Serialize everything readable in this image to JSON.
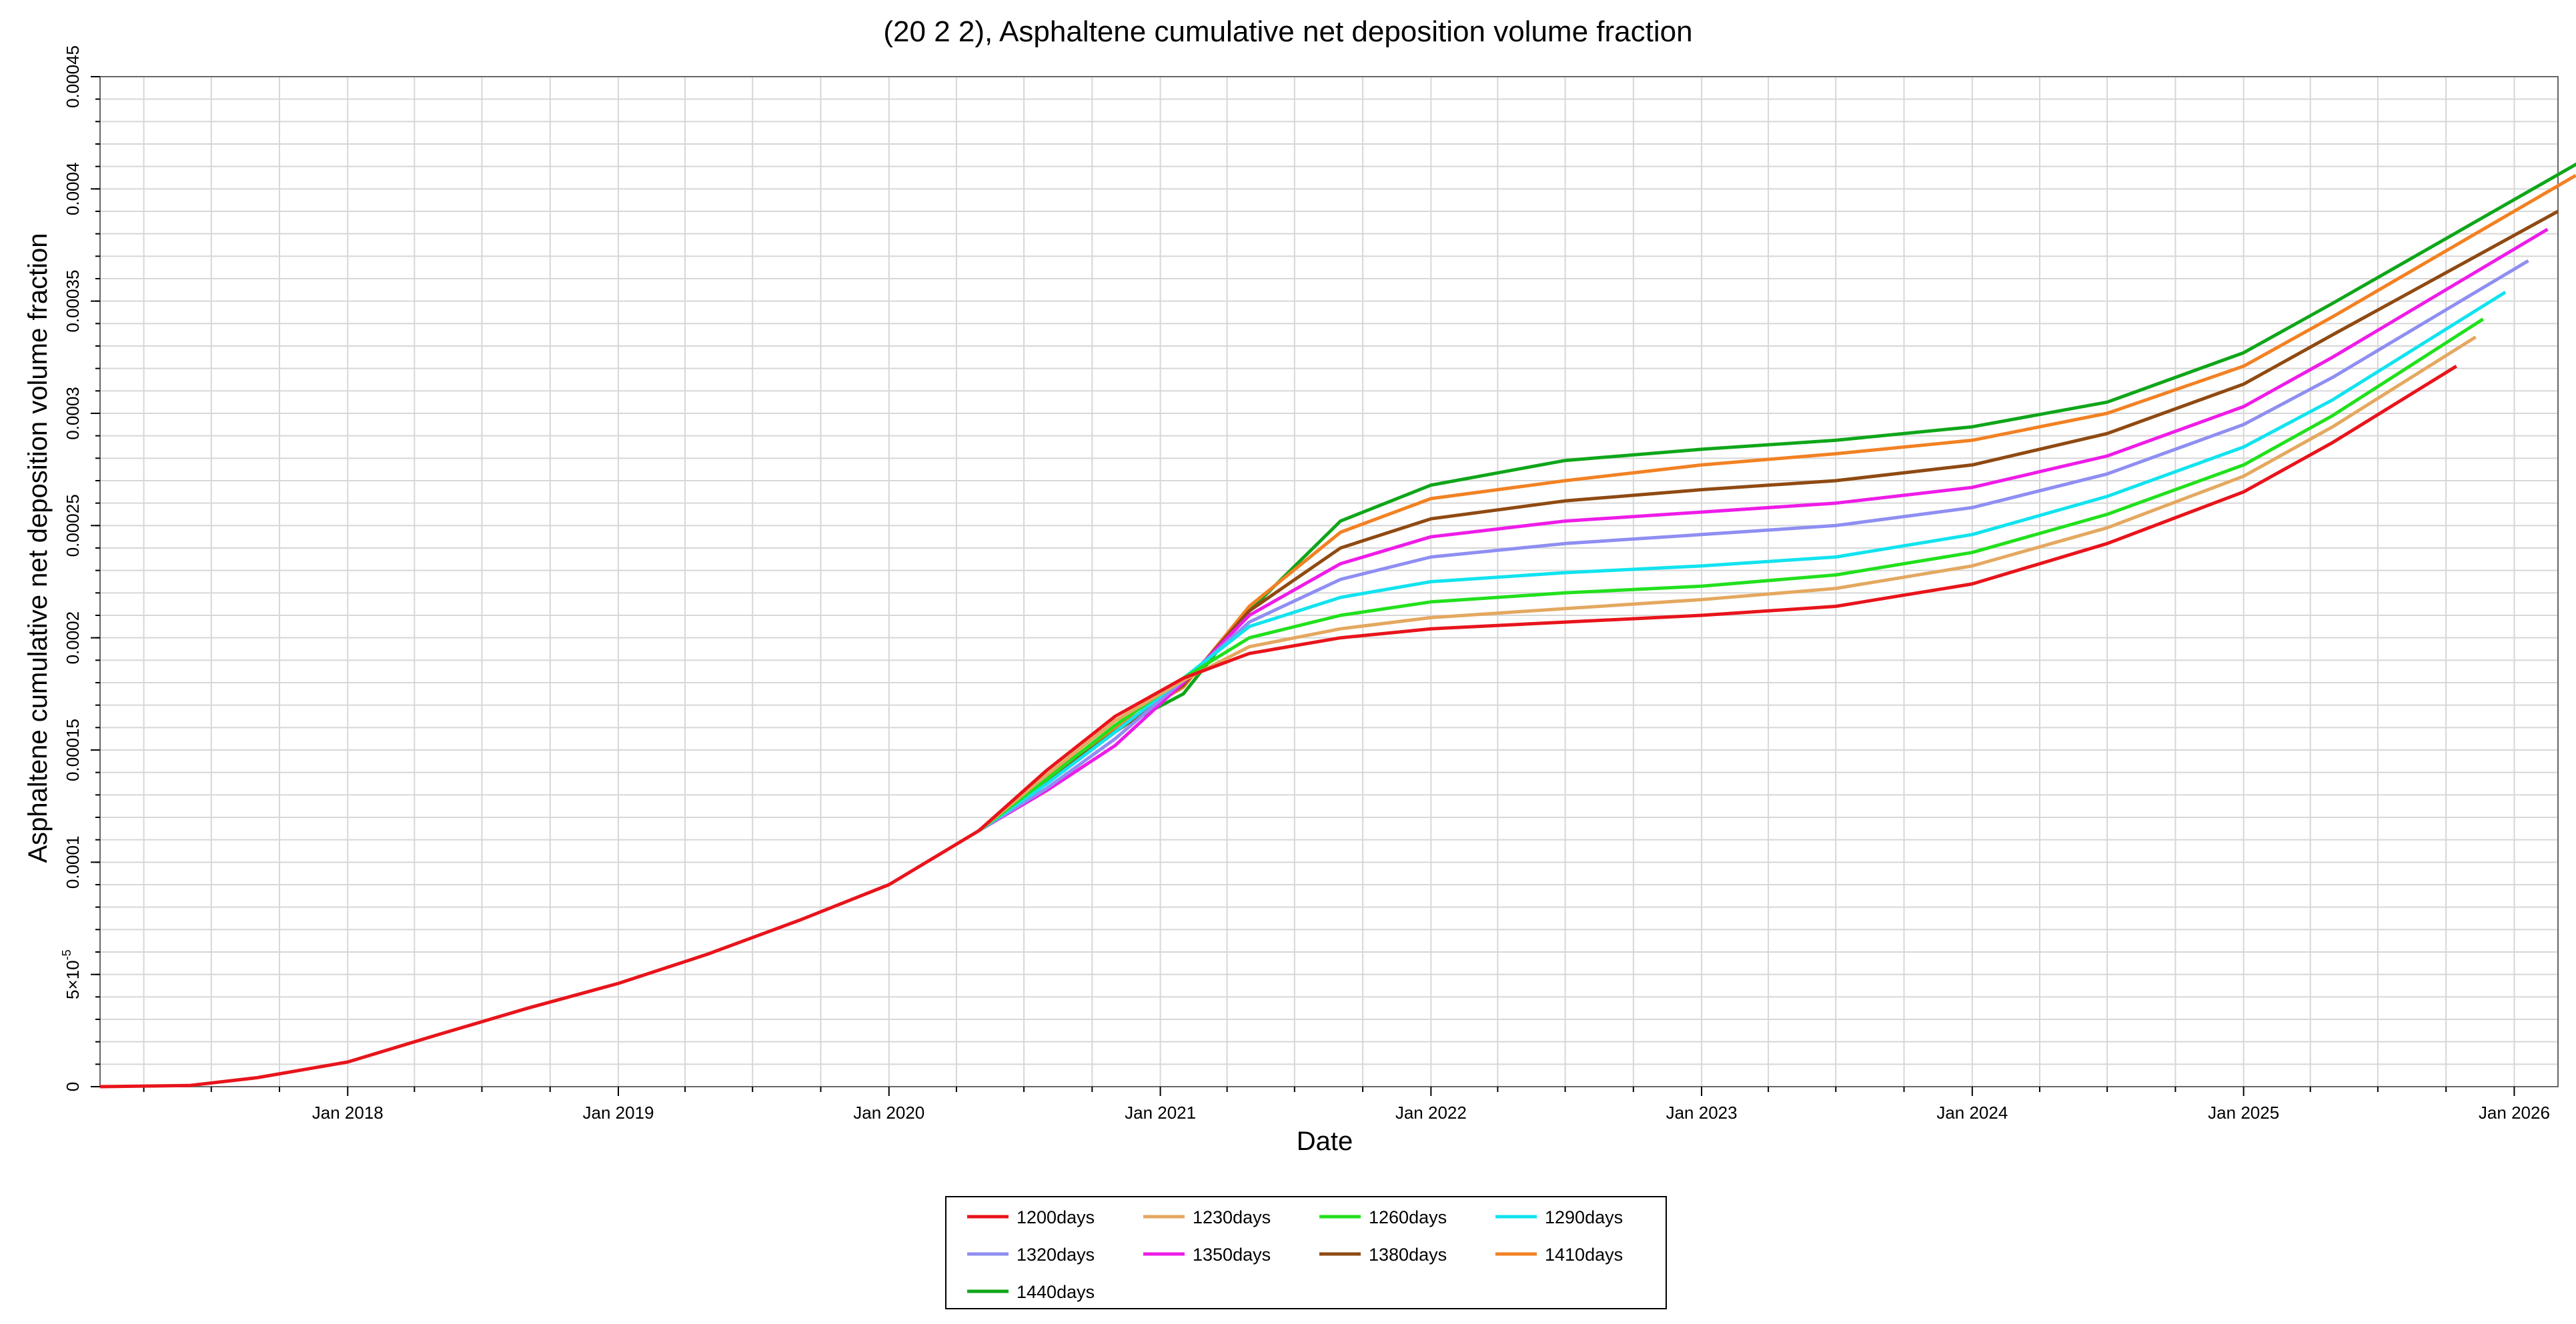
{
  "chart_data": {
    "type": "line",
    "title": "(20 2 2), Asphaltene cumulative net deposition volume fraction",
    "xlabel": "Date",
    "ylabel": "Asphaltene cumulative net deposition volume fraction",
    "xlim": [
      "2017-02-01",
      "2026-03-01"
    ],
    "ylim": [
      0,
      0.00045
    ],
    "x_ticks": [
      "Jan 2018",
      "Jan 2019",
      "Jan 2020",
      "Jan 2021",
      "Jan 2022",
      "Jan 2023",
      "Jan 2024",
      "Jan 2025",
      "Jan 2026"
    ],
    "x_tick_dates": [
      "2018-01-01",
      "2019-01-01",
      "2020-01-01",
      "2021-01-01",
      "2022-01-01",
      "2023-01-01",
      "2024-01-01",
      "2025-01-01",
      "2026-01-01"
    ],
    "y_ticks": [
      0,
      5e-05,
      0.0001,
      0.00015,
      0.0002,
      0.00025,
      0.0003,
      0.00035,
      0.0004,
      0.00045
    ],
    "y_tick_labels": [
      "0",
      "5×10",
      "0.0001",
      "0.00015",
      "0.0002",
      "0.00025",
      "0.0003",
      "0.00035",
      "0.0004",
      "0.00045"
    ],
    "y_tick_exponent": "-5",
    "grid": true,
    "legend_position": "bottom-center",
    "shared_history": {
      "dates": [
        "2017-02-01",
        "2017-06-01",
        "2017-09-01",
        "2018-01-01",
        "2018-05-01",
        "2018-09-01",
        "2019-01-01",
        "2019-05-01",
        "2019-09-01",
        "2020-01-01",
        "2020-05-01"
      ],
      "values": [
        0,
        5e-07,
        4e-06,
        1.1e-05,
        2.3e-05,
        3.5e-05,
        4.6e-05,
        5.9e-05,
        7.4e-05,
        9e-05,
        0.000114
      ]
    },
    "series": [
      {
        "name": "1200days",
        "color": "#e8141b",
        "x": [
          "2020-05-01",
          "2020-08-01",
          "2020-11-01",
          "2021-02-01",
          "2021-05-01",
          "2021-09-01",
          "2022-01-01",
          "2022-07-01",
          "2023-01-01",
          "2023-07-01",
          "2024-01-01",
          "2024-07-01",
          "2025-01-01",
          "2025-05-01",
          "2025-10-15"
        ],
        "values": [
          0.000114,
          0.000141,
          0.000165,
          0.000182,
          0.000193,
          0.0002,
          0.000204,
          0.000207,
          0.00021,
          0.000214,
          0.000224,
          0.000242,
          0.000265,
          0.000287,
          0.000321
        ]
      },
      {
        "name": "1230days",
        "color": "#e4a860",
        "x": [
          "2020-05-01",
          "2020-08-01",
          "2020-11-01",
          "2021-02-01",
          "2021-05-01",
          "2021-09-01",
          "2022-01-01",
          "2022-07-01",
          "2023-01-01",
          "2023-07-01",
          "2024-01-01",
          "2024-07-01",
          "2025-01-01",
          "2025-05-01",
          "2025-11-10"
        ],
        "values": [
          0.000114,
          0.000139,
          0.000163,
          0.000181,
          0.000196,
          0.000204,
          0.000209,
          0.000213,
          0.000217,
          0.000222,
          0.000232,
          0.000249,
          0.000272,
          0.000294,
          0.000334
        ]
      },
      {
        "name": "1260days",
        "color": "#22e01d",
        "x": [
          "2020-05-01",
          "2020-08-01",
          "2020-11-01",
          "2021-02-01",
          "2021-05-01",
          "2021-09-01",
          "2022-01-01",
          "2022-07-01",
          "2023-01-01",
          "2023-07-01",
          "2024-01-01",
          "2024-07-01",
          "2025-01-01",
          "2025-05-01",
          "2025-11-20"
        ],
        "values": [
          0.000114,
          0.000137,
          0.000161,
          0.000182,
          0.0002,
          0.00021,
          0.000216,
          0.00022,
          0.000223,
          0.000228,
          0.000238,
          0.000255,
          0.000277,
          0.000299,
          0.000342
        ]
      },
      {
        "name": "1290days",
        "color": "#12e3ef",
        "x": [
          "2020-05-01",
          "2020-08-01",
          "2020-11-01",
          "2021-02-01",
          "2021-05-01",
          "2021-09-01",
          "2022-01-01",
          "2022-07-01",
          "2023-01-01",
          "2023-07-01",
          "2024-01-01",
          "2024-07-01",
          "2025-01-01",
          "2025-05-01",
          "2025-12-20"
        ],
        "values": [
          0.000114,
          0.000135,
          0.000158,
          0.000182,
          0.000205,
          0.000218,
          0.000225,
          0.000229,
          0.000232,
          0.000236,
          0.000246,
          0.000263,
          0.000285,
          0.000306,
          0.000354
        ]
      },
      {
        "name": "1320days",
        "color": "#8e8ef2",
        "x": [
          "2020-05-01",
          "2020-08-01",
          "2020-11-01",
          "2021-02-01",
          "2021-05-01",
          "2021-09-01",
          "2022-01-01",
          "2022-07-01",
          "2023-01-01",
          "2023-07-01",
          "2024-01-01",
          "2024-07-01",
          "2025-01-01",
          "2025-05-01",
          "2026-01-20"
        ],
        "values": [
          0.000114,
          0.000133,
          0.000155,
          0.000181,
          0.000207,
          0.000226,
          0.000236,
          0.000242,
          0.000246,
          0.00025,
          0.000258,
          0.000273,
          0.000295,
          0.000316,
          0.000368
        ]
      },
      {
        "name": "1350days",
        "color": "#ee1ce8",
        "x": [
          "2020-05-01",
          "2020-08-01",
          "2020-11-01",
          "2021-02-01",
          "2021-05-01",
          "2021-09-01",
          "2022-01-01",
          "2022-07-01",
          "2023-01-01",
          "2023-07-01",
          "2024-01-01",
          "2024-07-01",
          "2025-01-01",
          "2025-05-01",
          "2026-02-15"
        ],
        "values": [
          0.000114,
          0.000132,
          0.000152,
          0.00018,
          0.00021,
          0.000233,
          0.000245,
          0.000252,
          0.000256,
          0.00026,
          0.000267,
          0.000281,
          0.000303,
          0.000325,
          0.000382
        ]
      },
      {
        "name": "1380days",
        "color": "#8f4a12",
        "x": [
          "2020-05-01",
          "2020-08-01",
          "2020-11-01",
          "2021-02-01",
          "2021-05-01",
          "2021-09-01",
          "2022-01-01",
          "2022-07-01",
          "2023-01-01",
          "2023-07-01",
          "2024-01-01",
          "2024-07-01",
          "2025-01-01",
          "2025-05-01",
          "2026-03-01"
        ],
        "values": [
          0.000114,
          0.000136,
          0.000158,
          0.000179,
          0.000212,
          0.00024,
          0.000253,
          0.000261,
          0.000266,
          0.00027,
          0.000277,
          0.000291,
          0.000313,
          0.000335,
          0.00039
        ]
      },
      {
        "name": "1410days",
        "color": "#f28123",
        "x": [
          "2020-05-01",
          "2020-08-01",
          "2020-11-01",
          "2021-02-01",
          "2021-05-01",
          "2021-09-01",
          "2022-01-01",
          "2022-07-01",
          "2023-01-01",
          "2023-07-01",
          "2024-01-01",
          "2024-07-01",
          "2025-01-01",
          "2025-05-01",
          "2026-03-25"
        ],
        "values": [
          0.000114,
          0.000138,
          0.00016,
          0.000178,
          0.000214,
          0.000247,
          0.000262,
          0.00027,
          0.000277,
          0.000282,
          0.000288,
          0.0003,
          0.000321,
          0.000343,
          0.000406
        ]
      },
      {
        "name": "1440days",
        "color": "#0fa61a",
        "x": [
          "2020-05-01",
          "2020-08-01",
          "2020-11-01",
          "2021-02-01",
          "2021-05-01",
          "2021-09-01",
          "2022-01-01",
          "2022-07-01",
          "2023-01-01",
          "2023-07-01",
          "2024-01-01",
          "2024-07-01",
          "2025-01-01",
          "2025-05-01",
          "2026-03-31"
        ],
        "values": [
          0.000114,
          0.000138,
          0.000159,
          0.000175,
          0.000212,
          0.000252,
          0.000268,
          0.000279,
          0.000284,
          0.000288,
          0.000294,
          0.000305,
          0.000327,
          0.000349,
          0.000412
        ]
      }
    ]
  }
}
